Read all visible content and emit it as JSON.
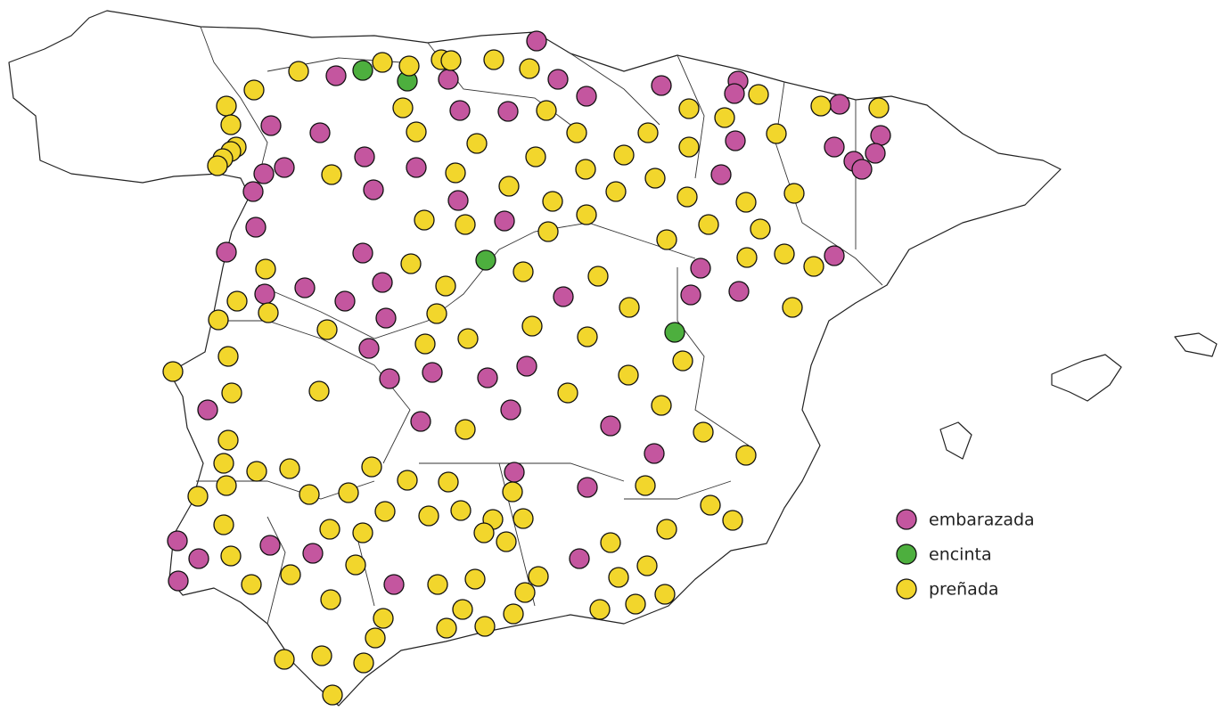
{
  "legend": {
    "items": [
      {
        "label": "embarazada",
        "color": "#c4569f"
      },
      {
        "label": "encinta",
        "color": "#4daf3e"
      },
      {
        "label": "preñada",
        "color": "#f2d62c"
      }
    ]
  }
}
